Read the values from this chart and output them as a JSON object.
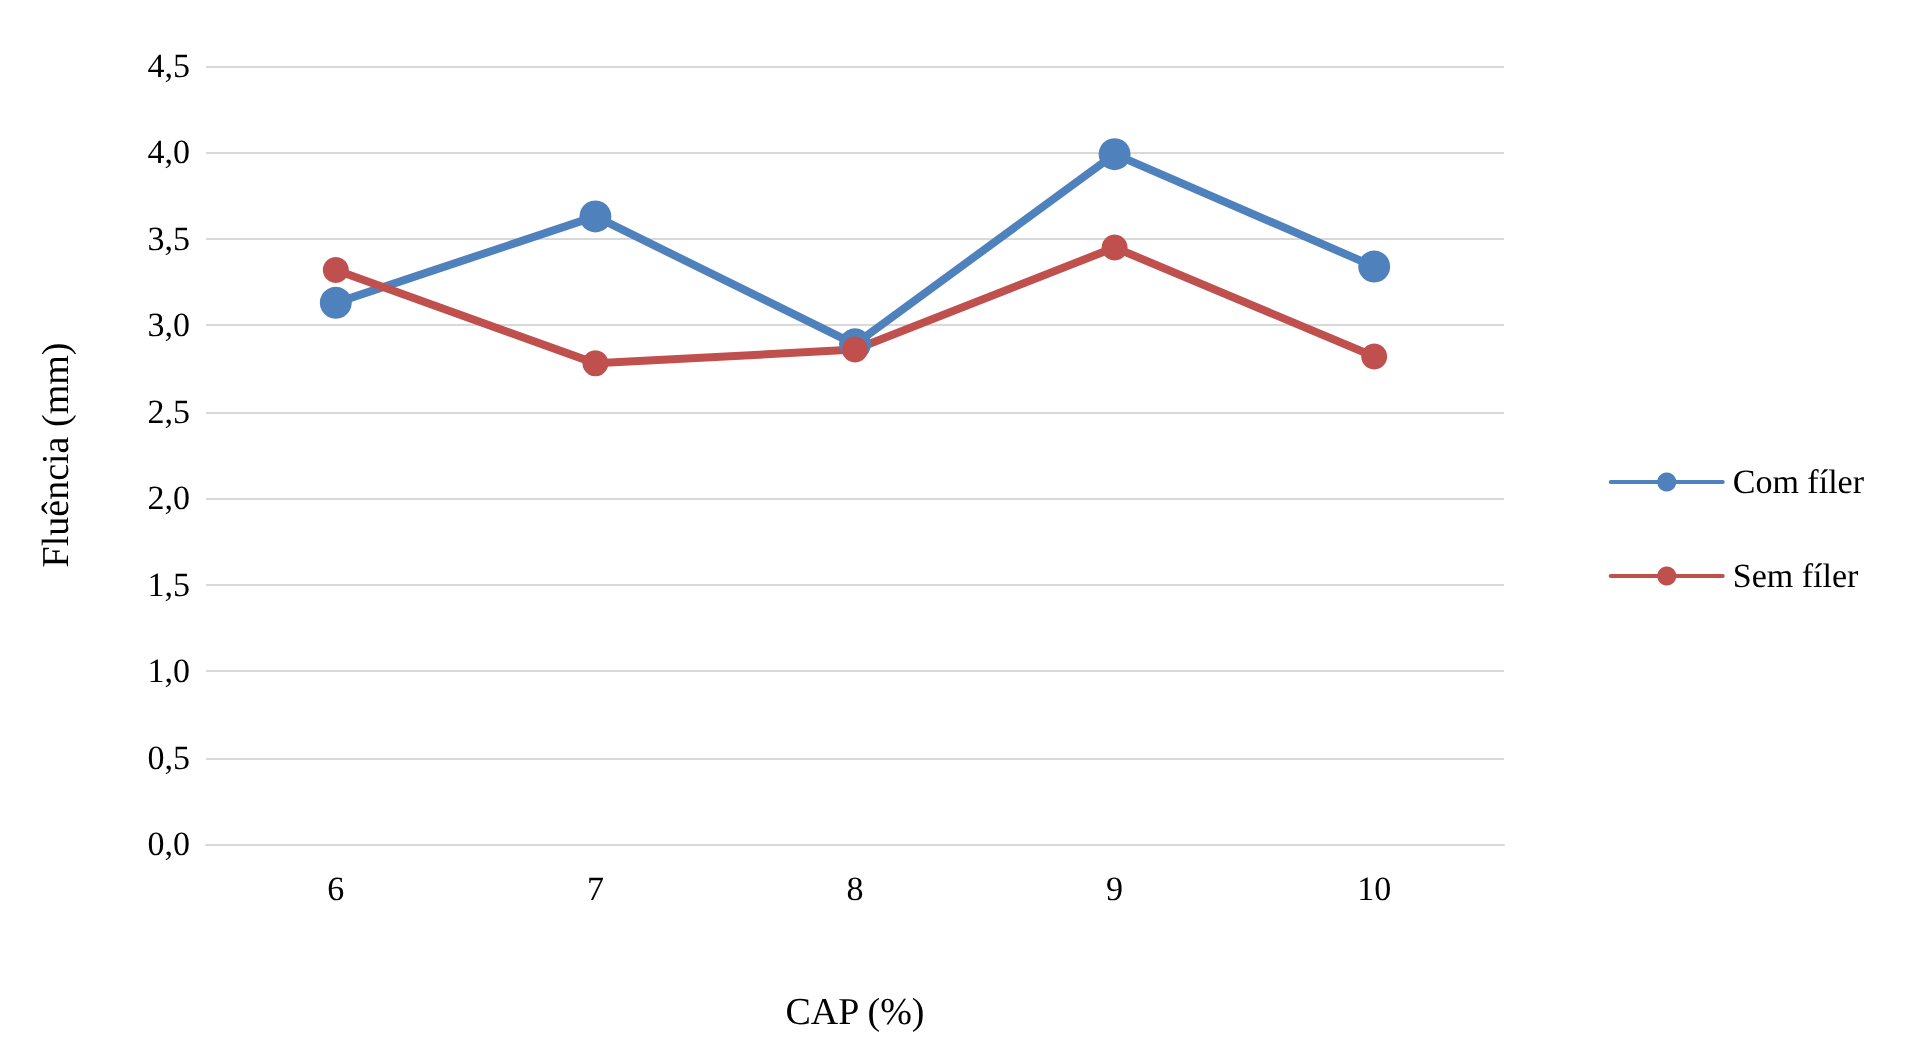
{
  "chart_data": {
    "type": "line",
    "xlabel": "CAP (%)",
    "ylabel": "Fluência (mm)",
    "categories": [
      "6",
      "7",
      "8",
      "9",
      "10"
    ],
    "series": [
      {
        "name": "Com fíler",
        "color": "#4f81bd",
        "values": [
          3.13,
          3.63,
          2.89,
          3.99,
          3.34
        ]
      },
      {
        "name": "Sem fíler",
        "color": "#c0504d",
        "values": [
          3.32,
          2.78,
          2.86,
          3.45,
          2.82
        ]
      }
    ],
    "ylim": [
      0,
      4.5
    ],
    "yticks": [
      {
        "value": 0,
        "label": "0,0"
      },
      {
        "value": 0.5,
        "label": "0,5"
      },
      {
        "value": 1,
        "label": "1,0"
      },
      {
        "value": 1.5,
        "label": "1,5"
      },
      {
        "value": 2,
        "label": "2,0"
      },
      {
        "value": 2.5,
        "label": "2,5"
      },
      {
        "value": 3,
        "label": "3,0"
      },
      {
        "value": 3.5,
        "label": "3,5"
      },
      {
        "value": 4,
        "label": "4,0"
      },
      {
        "value": 4.5,
        "label": "4,5"
      }
    ],
    "grid": "y",
    "legend": "right",
    "marker": "circle",
    "line_style": "solid"
  }
}
